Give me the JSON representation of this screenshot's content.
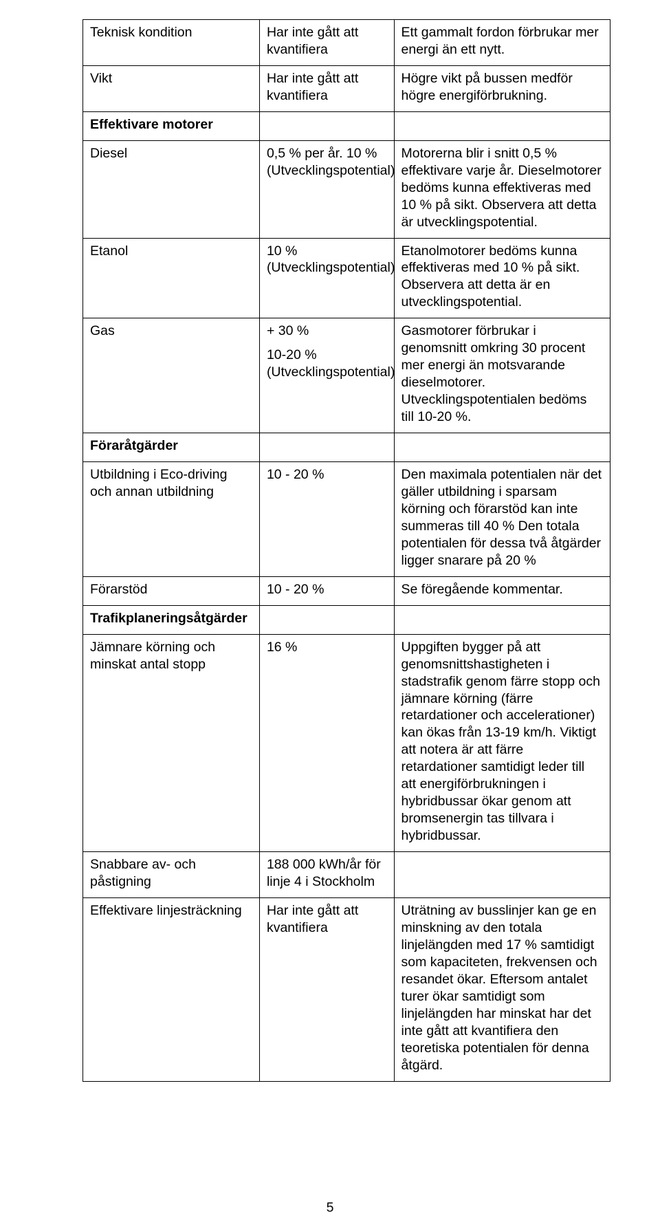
{
  "table": {
    "rows": [
      {
        "c1": "Teknisk kondition",
        "c2": "Har inte gått att kvantifiera",
        "c3": "Ett gammalt fordon förbrukar mer energi än ett nytt."
      },
      {
        "c1": "Vikt",
        "c2": "Har inte gått att kvantifiera",
        "c3": "Högre vikt på bussen medför högre energiförbrukning."
      },
      {
        "c1": "Effektivare motorer",
        "c2": "",
        "c3": ""
      },
      {
        "c1": "Diesel",
        "c2": "0,5 % per år. 10 % (Utvecklingspotential)",
        "c3": "Motorerna blir i snitt 0,5 % effektivare varje år. Dieselmotorer bedöms kunna effektiveras med 10 % på sikt. Observera att detta är utvecklingspotential."
      },
      {
        "c1": "Etanol",
        "c2": "10 % (Utvecklingspotential)",
        "c3": "Etanolmotorer bedöms kunna effektiveras med 10 % på sikt. Observera att detta är en utvecklingspotential."
      },
      {
        "c1": "Gas",
        "c2_a": "+ 30 %",
        "c2_b": "10-20 % (Utvecklingspotential)",
        "c3": "Gasmotorer förbrukar i genomsnitt omkring 30 procent mer energi än motsvarande dieselmotorer. Utvecklingspotentialen bedöms till 10-20 %."
      },
      {
        "c1": "Föraråtgärder",
        "c2": "",
        "c3": ""
      },
      {
        "c1": "Utbildning i Eco-driving och annan utbildning",
        "c2": "10 - 20 %",
        "c3": "Den maximala potentialen när det gäller utbildning i sparsam körning och förarstöd kan inte summeras till 40 % Den totala potentialen för dessa två åtgärder ligger snarare på 20 %"
      },
      {
        "c1": "Förarstöd",
        "c2": "10 - 20 %",
        "c3": "Se föregående kommentar."
      },
      {
        "c1": "Trafikplaneringsåtgärder",
        "c2": "",
        "c3": ""
      },
      {
        "c1": "Jämnare körning och minskat antal stopp",
        "c2": "16 %",
        "c3": "Uppgiften bygger på att genomsnittshastigheten i stadstrafik genom färre stopp och jämnare körning (färre retardationer och accelerationer) kan ökas från 13-19 km/h. Viktigt att notera är att färre retardationer samtidigt leder till att energiförbrukningen i hybridbussar ökar genom att bromsenergin tas tillvara i hybridbussar."
      },
      {
        "c1": "Snabbare av- och påstigning",
        "c2": "188 000 kWh/år för linje 4 i Stockholm",
        "c3": ""
      },
      {
        "c1": "Effektivare linjesträckning",
        "c2": "Har inte gått att kvantifiera",
        "c3": "Uträtning av busslinjer kan ge en minskning av den totala linjelängden med 17 % samtidigt som kapaciteten, frekvensen och resandet ökar. Eftersom antalet turer ökar samtidigt som linjelängden har minskat har det inte gått att kvantifiera den teoretiska potentialen för denna åtgärd."
      }
    ]
  },
  "page_number": "5"
}
